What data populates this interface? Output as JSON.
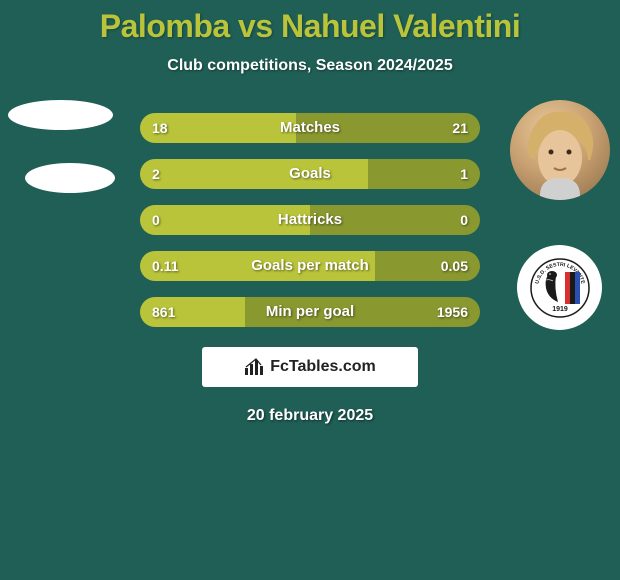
{
  "background_color": "#1f5f56",
  "title": {
    "text": "Palomba vs Nahuel Valentini",
    "color": "#bac43a",
    "fontsize": 32
  },
  "subtitle": {
    "text": "Club competitions, Season 2024/2025",
    "color": "#ffffff",
    "fontsize": 16
  },
  "stats": {
    "type": "comparison-bars",
    "left_color": "#bac43a",
    "right_color": "#8a9830",
    "text_color": "#ffffff",
    "rows": [
      {
        "label": "Matches",
        "left_val": "18",
        "right_val": "21",
        "left_pct": 46,
        "right_pct": 54
      },
      {
        "label": "Goals",
        "left_val": "2",
        "right_val": "1",
        "left_pct": 67,
        "right_pct": 33
      },
      {
        "label": "Hattricks",
        "left_val": "0",
        "right_val": "0",
        "left_pct": 50,
        "right_pct": 50
      },
      {
        "label": "Goals per match",
        "left_val": "0.11",
        "right_val": "0.05",
        "left_pct": 69,
        "right_pct": 31
      },
      {
        "label": "Min per goal",
        "left_val": "861",
        "right_val": "1956",
        "left_pct": 31,
        "right_pct": 69
      }
    ]
  },
  "branding": {
    "label": "FcTables.com",
    "icon": "bar-chart-icon"
  },
  "date": "20 february 2025",
  "crest": {
    "ring_text_top": "U.S.D. SESTRI LEVANTE",
    "year": "1919",
    "stripe_colors": [
      "#d8302f",
      "#1a1a1a",
      "#2a4fb0"
    ],
    "head_color": "#1a1a1a"
  }
}
